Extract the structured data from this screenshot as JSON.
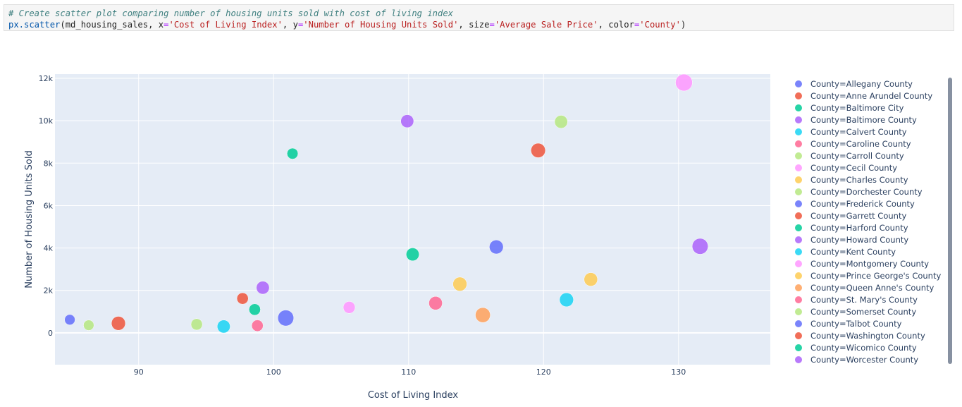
{
  "code": {
    "comment": "# Create scatter plot comparing number of housing units sold with cost of living index",
    "line": {
      "fn": "px.scatter",
      "open": "(md_housing_sales, ",
      "x_kw": "x",
      "x_val": "'Cost of Living Index'",
      "sep1": ", ",
      "y_kw": "y",
      "y_val": "'Number of Housing Units Sold'",
      "sep2": ", ",
      "size_kw": "size",
      "size_val": "'Average Sale Price'",
      "sep3": ", ",
      "color_kw": "color",
      "color_val": "'County'",
      "close": ")"
    }
  },
  "chart_data": {
    "type": "scatter",
    "xlabel": "Cost of Living Index",
    "ylabel": "Number of Housing Units Sold",
    "xlim": [
      83.8,
      136.8
    ],
    "ylim": [
      -1500,
      12200
    ],
    "xticks": [
      90,
      100,
      110,
      120,
      130
    ],
    "yticks": [
      0,
      2000,
      4000,
      6000,
      8000,
      10000,
      12000
    ],
    "ytick_labels": [
      "0",
      "2k",
      "4k",
      "6k",
      "8k",
      "10k",
      "12k"
    ],
    "grid": true,
    "legend_position": "right",
    "series": [
      {
        "name": "County=Allegany County",
        "color": "#636efa",
        "x": 84.9,
        "y": 620,
        "size": 0.35
      },
      {
        "name": "County=Anne Arundel County",
        "color": "#EF553B",
        "x": 119.6,
        "y": 8600,
        "size": 0.75
      },
      {
        "name": "County=Baltimore City",
        "color": "#00cc96",
        "x": 110.3,
        "y": 3700,
        "size": 0.6
      },
      {
        "name": "County=Baltimore County",
        "color": "#ab63fa",
        "x": 109.9,
        "y": 9980,
        "size": 0.6
      },
      {
        "name": "County=Calvert County",
        "color": "#19d3f3",
        "x": 121.7,
        "y": 1560,
        "size": 0.7
      },
      {
        "name": "County=Caroline County",
        "color": "#FF6692",
        "x": 98.8,
        "y": 340,
        "size": 0.45
      },
      {
        "name": "County=Carroll County",
        "color": "#B6E880",
        "x": 121.3,
        "y": 9950,
        "size": 0.6
      },
      {
        "name": "County=Cecil County",
        "color": "#FF97FF",
        "x": 105.6,
        "y": 1200,
        "size": 0.5
      },
      {
        "name": "County=Charles County",
        "color": "#FECB52",
        "x": 123.5,
        "y": 2520,
        "size": 0.65
      },
      {
        "name": "County=Dorchester County",
        "color": "#B6E880",
        "x": 86.3,
        "y": 360,
        "size": 0.35
      },
      {
        "name": "County=Frederick County",
        "color": "#636efa",
        "x": 116.5,
        "y": 4050,
        "size": 0.7
      },
      {
        "name": "County=Garrett County",
        "color": "#EF553B",
        "x": 97.7,
        "y": 1620,
        "size": 0.45
      },
      {
        "name": "County=Harford County",
        "color": "#00cc96",
        "x": 98.6,
        "y": 1100,
        "size": 0.45
      },
      {
        "name": "County=Howard County",
        "color": "#ab63fa",
        "x": 131.6,
        "y": 4080,
        "size": 0.9
      },
      {
        "name": "County=Kent County",
        "color": "#19d3f3",
        "x": 96.3,
        "y": 300,
        "size": 0.6
      },
      {
        "name": "County=Montgomery County",
        "color": "#FF97FF",
        "x": 130.4,
        "y": 11800,
        "size": 1.0
      },
      {
        "name": "County=Prince George's County",
        "color": "#FECB52",
        "x": 113.8,
        "y": 2300,
        "size": 0.7
      },
      {
        "name": "County=Queen Anne's County",
        "color": "#FFA15A",
        "x": 115.5,
        "y": 840,
        "size": 0.8
      },
      {
        "name": "County=St. Mary's County",
        "color": "#FF6692",
        "x": 112.0,
        "y": 1400,
        "size": 0.65
      },
      {
        "name": "County=Somerset County",
        "color": "#B6E880",
        "x": 94.3,
        "y": 400,
        "size": 0.45
      },
      {
        "name": "County=Talbot County",
        "color": "#636efa",
        "x": 100.9,
        "y": 700,
        "size": 0.9
      },
      {
        "name": "County=Washington County",
        "color": "#EF553B",
        "x": 88.5,
        "y": 450,
        "size": 0.7
      },
      {
        "name": "County=Wicomico County",
        "color": "#00cc96",
        "x": 101.4,
        "y": 8450,
        "size": 0.4
      },
      {
        "name": "County=Worcester County",
        "color": "#ab63fa",
        "x": 99.2,
        "y": 2130,
        "size": 0.6
      }
    ]
  }
}
